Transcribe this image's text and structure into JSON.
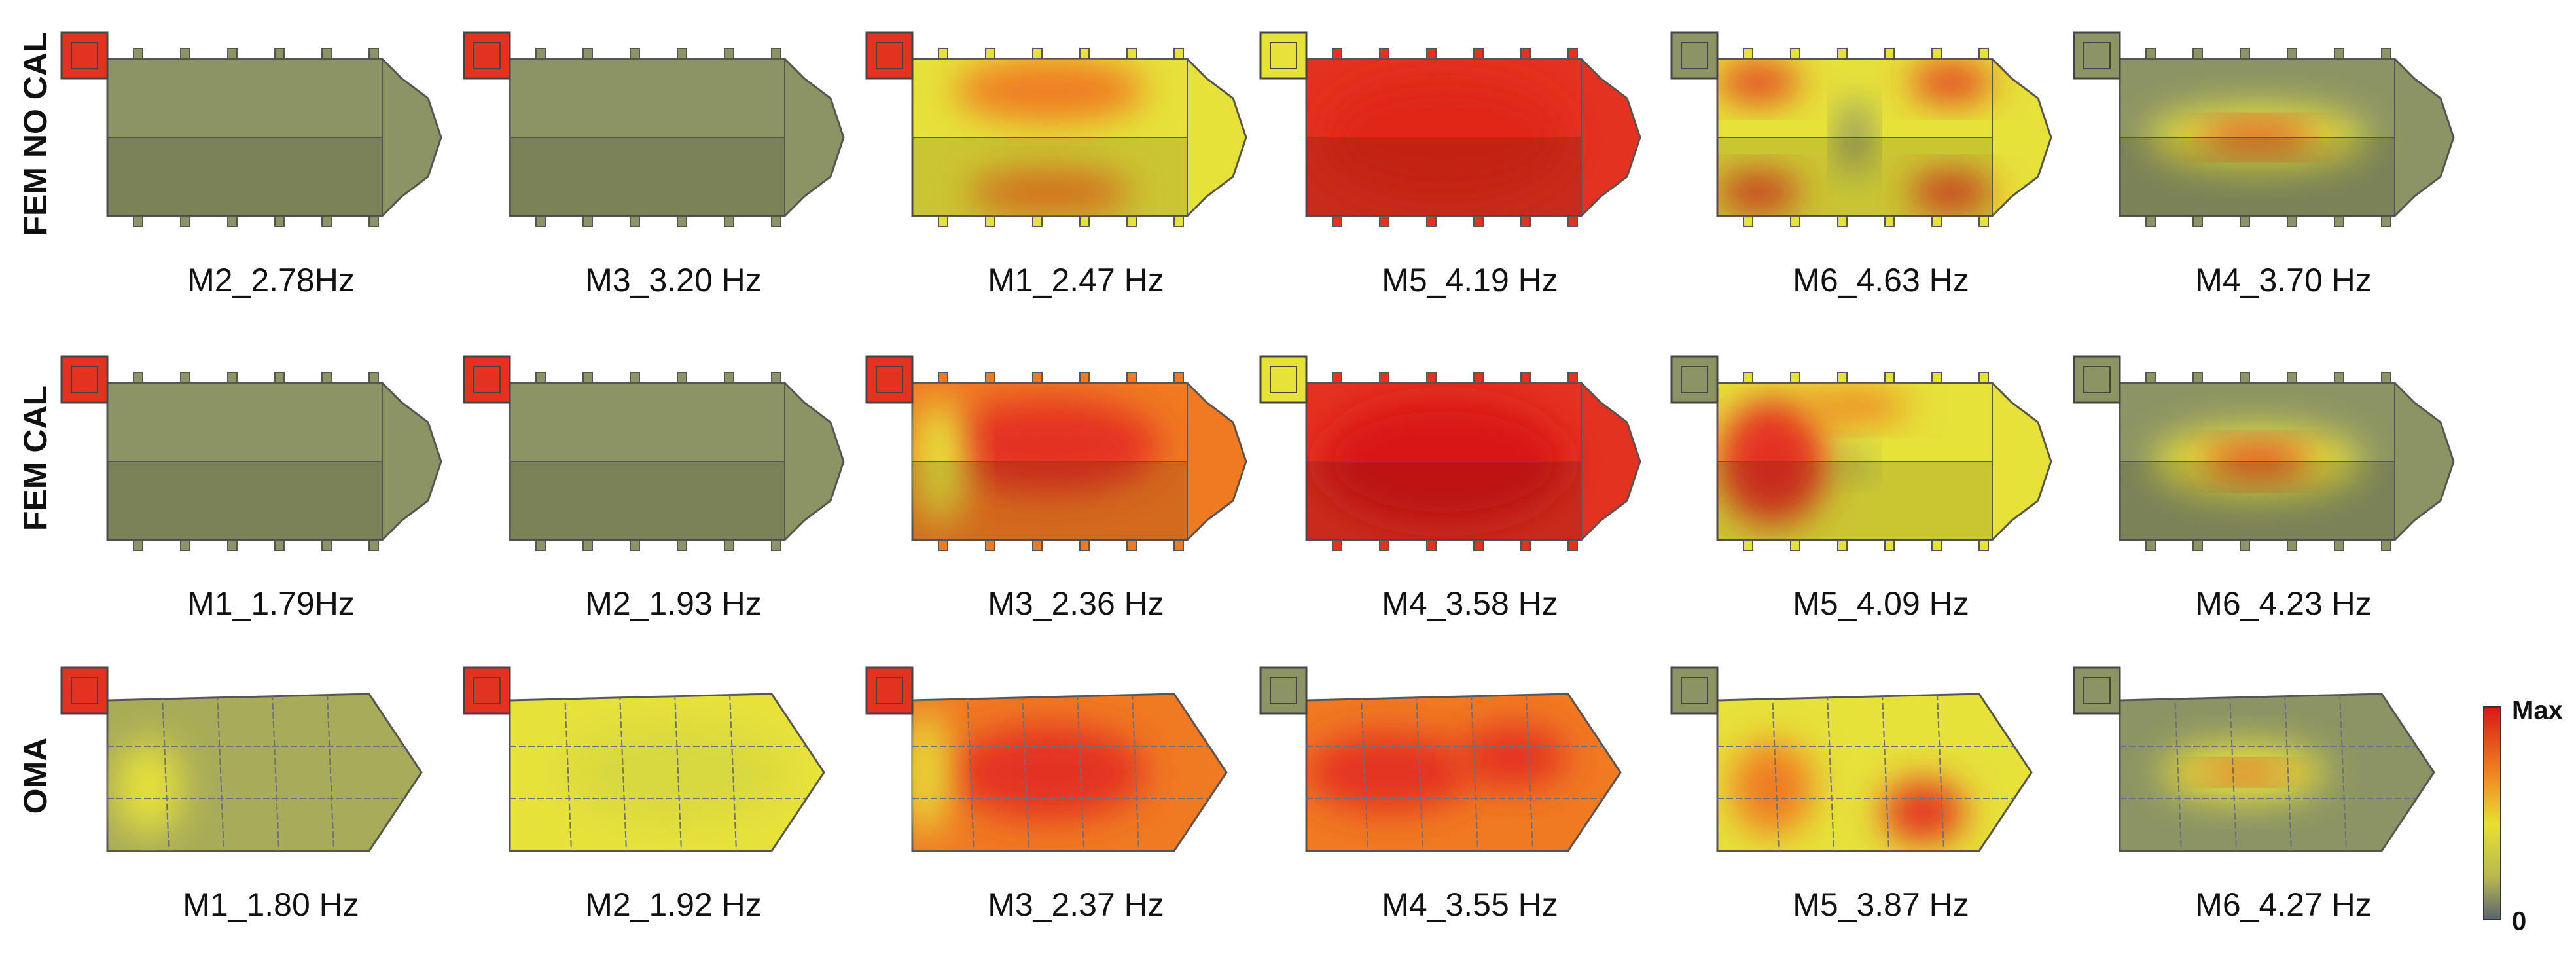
{
  "rows": [
    {
      "label": "FEM NO CAL",
      "modes": [
        "M2_2.78Hz",
        "M3_3.20 Hz",
        "M1_2.47 Hz",
        "M5_4.19 Hz",
        "M6_4.63 Hz",
        "M4_3.70 Hz"
      ]
    },
    {
      "label": "FEM CAL",
      "modes": [
        "M1_1.79Hz",
        "M2_1.93 Hz",
        "M3_2.36 Hz",
        "M4_3.58 Hz",
        "M5_4.09 Hz",
        "M6_4.23 Hz"
      ]
    },
    {
      "label": "OMA",
      "modes": [
        "M1_1.80 Hz",
        "M2_1.92 Hz",
        "M3_2.37 Hz",
        "M4_3.55 Hz",
        "M5_3.87 Hz",
        "M6_4.27 Hz"
      ]
    }
  ],
  "colorbar": {
    "max_label": "Max",
    "min_label": "0"
  }
}
